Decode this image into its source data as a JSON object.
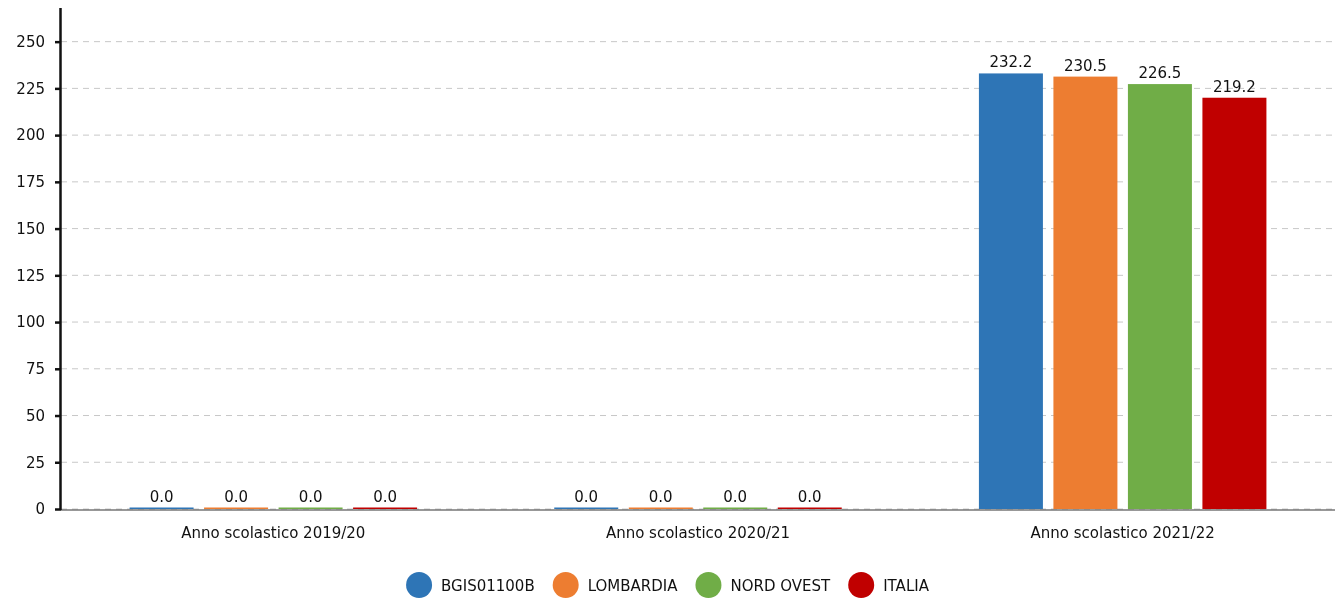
{
  "chart_data": {
    "type": "bar",
    "categories": [
      "Anno scolastico 2019/20",
      "Anno scolastico 2020/21",
      "Anno scolastico 2021/22"
    ],
    "series": [
      {
        "name": "BGIS01100B",
        "color": "#2e75b6",
        "values": [
          0,
          0,
          232.2
        ],
        "value_labels": [
          "0.0",
          "0.0",
          "232.2"
        ]
      },
      {
        "name": "LOMBARDIA",
        "color": "#ed7d31",
        "values": [
          0,
          0,
          230.5
        ],
        "value_labels": [
          "0.0",
          "0.0",
          "230.5"
        ]
      },
      {
        "name": "NORD OVEST",
        "color": "#70ad47",
        "values": [
          0,
          0,
          226.5
        ],
        "value_labels": [
          "0.0",
          "0.0",
          "226.5"
        ]
      },
      {
        "name": "ITALIA",
        "color": "#c00000",
        "values": [
          0,
          0,
          219.2
        ],
        "value_labels": [
          "0.0",
          "0.0",
          "219.2"
        ]
      }
    ],
    "ylim": [
      0,
      268
    ],
    "yticks": [
      0,
      25,
      50,
      75,
      100,
      125,
      150,
      175,
      200,
      225,
      250
    ],
    "grid": "y",
    "legend": "bottom"
  }
}
